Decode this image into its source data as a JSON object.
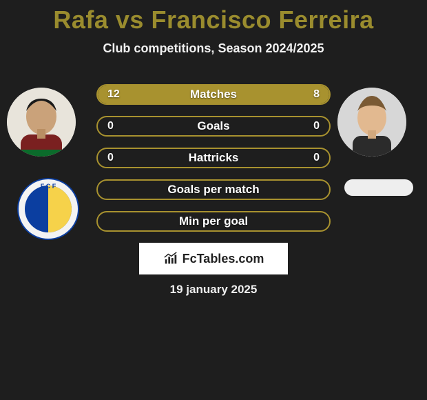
{
  "title": {
    "text": "Rafa vs Francisco Ferreira",
    "color": "#9a8c2e",
    "fontsize": 36
  },
  "subtitle": "Club competitions, Season 2024/2025",
  "background_color": "#1e1e1e",
  "players": {
    "left": {
      "name": "Rafa"
    },
    "right": {
      "name": "Francisco Ferreira"
    }
  },
  "bars": {
    "outline_color": "#a8922f",
    "left_fill_color": "#a8922f",
    "right_fill_color": "#a8922f",
    "empty_color": "transparent",
    "height": 30,
    "gap": 16,
    "rows": [
      {
        "label": "Matches",
        "left": "12",
        "right": "8",
        "left_pct": 60,
        "right_pct": 40
      },
      {
        "label": "Goals",
        "left": "0",
        "right": "0",
        "left_pct": 0,
        "right_pct": 0
      },
      {
        "label": "Hattricks",
        "left": "0",
        "right": "0",
        "left_pct": 0,
        "right_pct": 0
      },
      {
        "label": "Goals per match",
        "left": "",
        "right": "",
        "left_pct": 0,
        "right_pct": 0
      },
      {
        "label": "Min per goal",
        "left": "",
        "right": "",
        "left_pct": 0,
        "right_pct": 0
      }
    ]
  },
  "watermark": "FcTables.com",
  "date": "19 january 2025"
}
